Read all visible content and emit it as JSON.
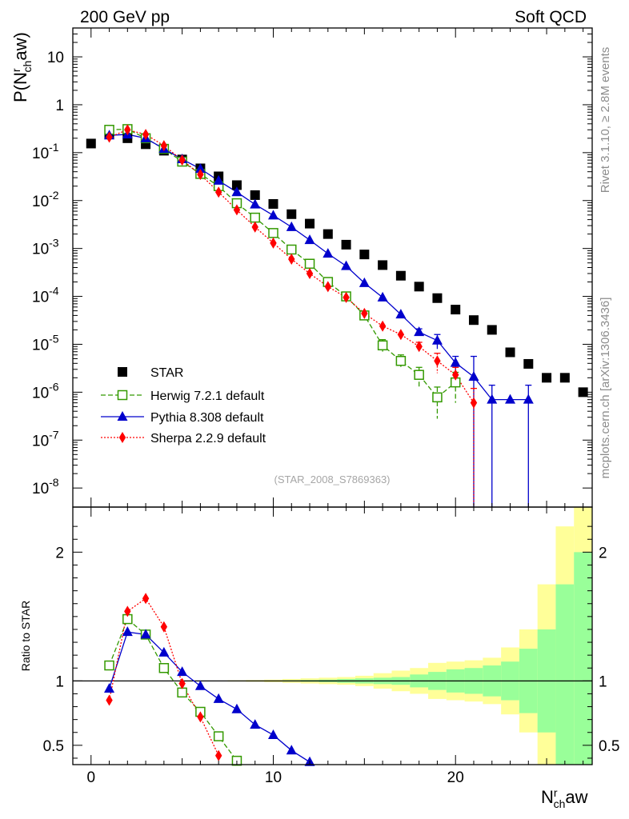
{
  "header": {
    "left_label": "200 GeV pp",
    "right_label": "Soft QCD",
    "rivet_label": "Rivet 3.1.10, ≥ 2.8M events",
    "mcplots_label": "mcplots.cern.ch [arXiv:1306.3436]",
    "analysis_label": "(STAR_2008_S7869363)"
  },
  "chart_data": [
    {
      "type": "scatter",
      "yscale": "log",
      "ylabel": "P(N^r_ch aw)",
      "ylim": [
        4e-09,
        40
      ],
      "xlim": [
        -1,
        27.5
      ],
      "legend_position": "center-left",
      "yticks": [
        {
          "v": 1e-08,
          "m": "10",
          "e": "-8"
        },
        {
          "v": 1e-07,
          "m": "10",
          "e": "-7"
        },
        {
          "v": 1e-06,
          "m": "10",
          "e": "-6"
        },
        {
          "v": 1e-05,
          "m": "10",
          "e": "-5"
        },
        {
          "v": 0.0001,
          "m": "10",
          "e": "-4"
        },
        {
          "v": 0.001,
          "m": "10",
          "e": "-3"
        },
        {
          "v": 0.01,
          "m": "10",
          "e": "-2"
        },
        {
          "v": 0.1,
          "m": "10",
          "e": "-1"
        },
        {
          "v": 1,
          "m": "1",
          "e": ""
        },
        {
          "v": 10,
          "m": "10",
          "e": ""
        }
      ],
      "series": [
        {
          "name": "STAR",
          "color": "#000000",
          "marker": "square-filled",
          "line": "none",
          "x": [
            0,
            1,
            2,
            3,
            4,
            5,
            6,
            7,
            8,
            9,
            10,
            11,
            12,
            13,
            14,
            15,
            16,
            17,
            18,
            19,
            20,
            21,
            22,
            23,
            24,
            25,
            26,
            27
          ],
          "y": [
            0.155,
            0.24,
            0.2,
            0.15,
            0.11,
            0.072,
            0.047,
            0.032,
            0.021,
            0.013,
            0.0085,
            0.0052,
            0.0033,
            0.002,
            0.0012,
            0.00075,
            0.00045,
            0.00027,
            0.00016,
            9.2e-05,
            5.3e-05,
            3.2e-05,
            2e-05,
            6.8e-06,
            3.9e-06,
            2e-06,
            2e-06,
            1e-06
          ]
        },
        {
          "name": "Herwig 7.2.1 default",
          "color": "#339900",
          "marker": "square-open",
          "line": "dashed",
          "x": [
            1,
            2,
            3,
            4,
            5,
            6,
            7,
            8,
            9,
            10,
            11,
            12,
            13,
            14,
            15,
            16,
            17,
            18,
            19,
            20
          ],
          "y": [
            0.3,
            0.31,
            0.2,
            0.12,
            0.065,
            0.036,
            0.02,
            0.0088,
            0.0044,
            0.0021,
            0.00095,
            0.00048,
            0.0002,
            0.0001,
            4e-05,
            9.5e-06,
            4.5e-06,
            2.3e-06,
            7.8e-07,
            1.6e-06
          ],
          "y_err": [
            0,
            0,
            0,
            0,
            0,
            0,
            0,
            0,
            0,
            0,
            0,
            0,
            0,
            0,
            6e-06,
            3e-06,
            1.5e-06,
            1e-06,
            5e-07,
            1e-06
          ]
        },
        {
          "name": "Pythia 8.308 default",
          "color": "#0000cc",
          "marker": "triangle-filled",
          "line": "solid",
          "x": [
            1,
            2,
            3,
            4,
            5,
            6,
            7,
            8,
            9,
            10,
            11,
            12,
            13,
            14,
            15,
            16,
            17,
            18,
            19,
            20,
            21,
            22,
            23,
            24
          ],
          "y": [
            0.23,
            0.24,
            0.2,
            0.12,
            0.073,
            0.046,
            0.026,
            0.015,
            0.0083,
            0.0049,
            0.0028,
            0.0015,
            0.00078,
            0.00043,
            0.00019,
            9.5e-05,
            4.2e-05,
            1.8e-05,
            1.2e-05,
            4.1e-06,
            2.1e-06,
            7e-07,
            7e-07,
            7e-07
          ],
          "y_err": [
            0,
            0,
            0,
            0,
            0,
            0,
            0,
            0,
            0,
            0,
            0,
            0,
            0,
            0,
            0,
            0,
            0,
            3e-06,
            4e-06,
            1.5e-06,
            3.5e-06,
            7e-07,
            0,
            7e-07
          ]
        },
        {
          "name": "Sherpa 2.2.9 default",
          "color": "#ff0000",
          "marker": "diamond-filled",
          "line": "dotted",
          "x": [
            1,
            2,
            3,
            4,
            5,
            6,
            7,
            8,
            9,
            10,
            11,
            12,
            13,
            14,
            15,
            16,
            17,
            18,
            19,
            20,
            21
          ],
          "y": [
            0.21,
            0.3,
            0.24,
            0.14,
            0.07,
            0.035,
            0.015,
            0.0064,
            0.0028,
            0.0013,
            0.0006,
            0.0003,
            0.00016,
            9.5e-05,
            4.4e-05,
            2.4e-05,
            1.6e-05,
            9e-06,
            4.5e-06,
            2.3e-06,
            6e-07
          ],
          "y_err": [
            0,
            0,
            0,
            0,
            0,
            0,
            0,
            0,
            0,
            0,
            0,
            0,
            0,
            0,
            0,
            0,
            0,
            2e-06,
            2e-06,
            1e-06,
            6e-07
          ]
        }
      ]
    },
    {
      "type": "line",
      "ylabel": "Ratio to STAR",
      "xlabel": "N^r_ch aw",
      "ylim": [
        0.35,
        2.35
      ],
      "xlim": [
        -1,
        27.5
      ],
      "xticks": [
        0,
        10,
        20
      ],
      "yticks": [
        0.5,
        1,
        2
      ],
      "reference_line": 1,
      "bands": {
        "x": [
          0,
          1,
          2,
          3,
          4,
          5,
          6,
          7,
          8,
          9,
          10,
          11,
          12,
          13,
          14,
          15,
          16,
          17,
          18,
          19,
          20,
          21,
          22,
          23,
          24,
          25,
          26,
          27
        ],
        "stat_half_width": [
          0,
          0,
          0,
          0,
          0,
          0,
          0,
          0,
          0,
          0,
          0,
          0.005,
          0.007,
          0.01,
          0.015,
          0.02,
          0.025,
          0.03,
          0.05,
          0.07,
          0.09,
          0.1,
          0.12,
          0.15,
          0.25,
          0.4,
          0.75,
          1.0
        ],
        "syst_half_width": [
          0,
          0,
          0,
          0,
          0,
          0,
          0,
          0,
          0.005,
          0.007,
          0.01,
          0.015,
          0.02,
          0.025,
          0.03,
          0.04,
          0.06,
          0.08,
          0.1,
          0.14,
          0.15,
          0.16,
          0.18,
          0.26,
          0.4,
          0.75,
          1.2,
          1.6
        ],
        "stat_color": "#99ff99",
        "syst_color": "#ffff99"
      },
      "series": [
        {
          "name": "Herwig 7.2.1 default",
          "color": "#339900",
          "marker": "square-open",
          "line": "dashed",
          "x": [
            1,
            2,
            3,
            4,
            5,
            6,
            7,
            8
          ],
          "y": [
            1.12,
            1.48,
            1.36,
            1.1,
            0.91,
            0.76,
            0.57,
            0.38
          ]
        },
        {
          "name": "Pythia 8.308 default",
          "color": "#0000cc",
          "marker": "triangle-filled",
          "line": "solid",
          "x": [
            1,
            2,
            3,
            4,
            5,
            6,
            7,
            8,
            9,
            10,
            11,
            12
          ],
          "y": [
            0.94,
            1.38,
            1.36,
            1.22,
            1.07,
            0.96,
            0.86,
            0.78,
            0.66,
            0.58,
            0.46,
            0.37
          ]
        },
        {
          "name": "Sherpa 2.2.9 default",
          "color": "#ff0000",
          "marker": "diamond-filled",
          "line": "dotted",
          "x": [
            1,
            2,
            3,
            4,
            5,
            6,
            7
          ],
          "y": [
            0.85,
            1.54,
            1.64,
            1.42,
            0.98,
            0.72,
            0.42
          ]
        }
      ]
    }
  ]
}
